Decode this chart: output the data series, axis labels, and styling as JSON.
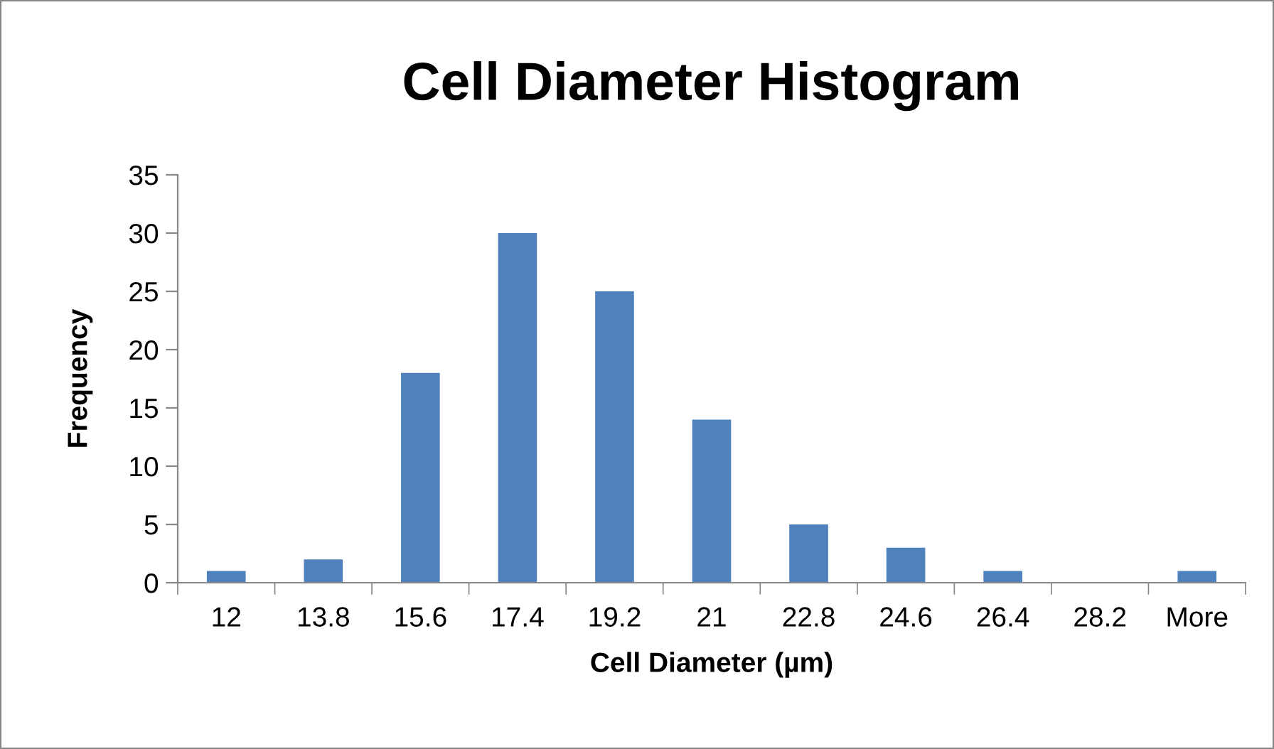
{
  "chart_data": {
    "type": "bar",
    "title": "Cell Diameter Histogram",
    "xlabel": "Cell Diameter (µm)",
    "ylabel": "Frequency",
    "categories": [
      "12",
      "13.8",
      "15.6",
      "17.4",
      "19.2",
      "21",
      "22.8",
      "24.6",
      "26.4",
      "28.2",
      "More"
    ],
    "values": [
      1,
      2,
      18,
      30,
      25,
      14,
      5,
      3,
      1,
      0,
      1
    ],
    "color": "#4f81bd",
    "ylim": [
      0,
      35
    ],
    "yticks": [
      0,
      5,
      10,
      15,
      20,
      25,
      30,
      35
    ],
    "grid": false,
    "legend": false
  }
}
